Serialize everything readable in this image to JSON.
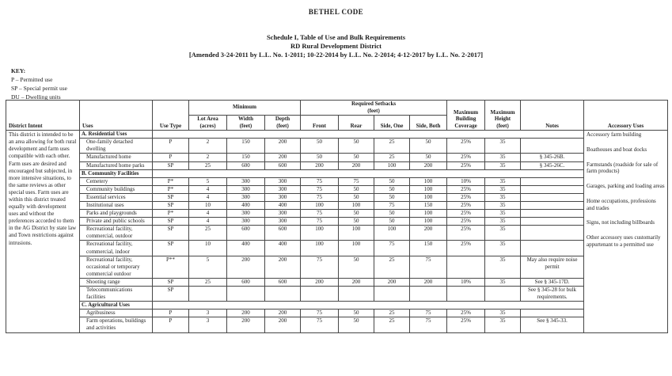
{
  "header": {
    "code_title": "BETHEL CODE",
    "schedule_title": "Schedule I, Table of Use and Bulk Requirements",
    "district_title": "RD Rural Development District",
    "amendments": "[Amended 3-24-2011 by L.L. No. 1-2011; 10-22-2014 by L.L. No. 2-2014; 4-12-2017 by L.L. No. 2-2017]"
  },
  "key": {
    "label": "KEY:",
    "items": [
      "P – Permitted use",
      "SP – Special permit use",
      "DU – Dwelling units"
    ]
  },
  "table": {
    "headers": {
      "district_intent": "District Intent",
      "uses": "Uses",
      "use_type": "Use Type",
      "minimum": "Minimum",
      "lot_area": "Lot Area\n(acres)",
      "width": "Width\n(feet)",
      "depth": "Depth\n(feet)",
      "required_setbacks": "Required Setbacks\n(feet)",
      "front": "Front",
      "rear": "Rear",
      "side_one": "Side, One",
      "side_both": "Side, Both",
      "max_building_coverage": "Maximum\nBuilding\nCoverage",
      "max_height": "Maximum\nHeight\n(feet)",
      "notes": "Notes",
      "accessory_uses": "Accessory Uses"
    },
    "district_intent": "This district is intended to be an area allowing for both rural development and farm uses compatible with each other. Farm uses are desired and encouraged but subjected, in more intensive situations, to the same reviews as other special uses. Farm uses are within this district treated equally with development uses and without the preferences accorded to them in the AG District by state law and Town restrictions against intrusions.",
    "accessory_uses": [
      "Accessory farm building",
      "Boathouses and boat docks",
      "Farmstands (roadside for sale of farm products)",
      "Garages, parking and loading areas",
      "Home occupations, professions and trades",
      "Signs, not including billboards",
      "Other accessory uses customarily appurtenant to a permitted use"
    ],
    "rows": [
      {
        "type": "section",
        "label": "A. Residential Uses"
      },
      {
        "type": "use",
        "use": "One-family detached dwelling",
        "use_type": "P",
        "lot_area": "2",
        "width": "150",
        "depth": "200",
        "front": "50",
        "rear": "50",
        "side_one": "25",
        "side_both": "50",
        "coverage": "25%",
        "height": "35",
        "notes": ""
      },
      {
        "type": "use",
        "use": "Manufactured home",
        "use_type": "P",
        "lot_area": "2",
        "width": "150",
        "depth": "200",
        "front": "50",
        "rear": "50",
        "side_one": "25",
        "side_both": "50",
        "coverage": "25%",
        "height": "35",
        "notes": "§ 345-26B."
      },
      {
        "type": "use",
        "use": "Manufactured home parks",
        "use_type": "SP",
        "lot_area": "25",
        "width": "600",
        "depth": "600",
        "front": "200",
        "rear": "200",
        "side_one": "100",
        "side_both": "200",
        "coverage": "25%",
        "height": "35",
        "notes": "§ 345-26C."
      },
      {
        "type": "section",
        "label": "B. Community Facilities"
      },
      {
        "type": "use",
        "use": "Cemetery",
        "use_type": "P*",
        "lot_area": "5",
        "width": "300",
        "depth": "300",
        "front": "75",
        "rear": "75",
        "side_one": "50",
        "side_both": "100",
        "coverage": "10%",
        "height": "35",
        "notes": ""
      },
      {
        "type": "use",
        "use": "Community buildings",
        "use_type": "P*",
        "lot_area": "4",
        "width": "300",
        "depth": "300",
        "front": "75",
        "rear": "50",
        "side_one": "50",
        "side_both": "100",
        "coverage": "25%",
        "height": "35",
        "notes": ""
      },
      {
        "type": "use",
        "use": "Essential services",
        "use_type": "SP",
        "lot_area": "4",
        "width": "300",
        "depth": "300",
        "front": "75",
        "rear": "50",
        "side_one": "50",
        "side_both": "100",
        "coverage": "25%",
        "height": "35",
        "notes": ""
      },
      {
        "type": "use",
        "use": "Institutional uses",
        "use_type": "SP",
        "lot_area": "10",
        "width": "400",
        "depth": "400",
        "front": "100",
        "rear": "100",
        "side_one": "75",
        "side_both": "150",
        "coverage": "25%",
        "height": "35",
        "notes": ""
      },
      {
        "type": "use",
        "use": "Parks and playgrounds",
        "use_type": "P*",
        "lot_area": "4",
        "width": "300",
        "depth": "300",
        "front": "75",
        "rear": "50",
        "side_one": "50",
        "side_both": "100",
        "coverage": "25%",
        "height": "35",
        "notes": ""
      },
      {
        "type": "use",
        "use": "Private and public schools",
        "use_type": "SP",
        "lot_area": "4",
        "width": "300",
        "depth": "300",
        "front": "75",
        "rear": "50",
        "side_one": "50",
        "side_both": "100",
        "coverage": "25%",
        "height": "35",
        "notes": ""
      },
      {
        "type": "use",
        "use": "Recreational facility, commercial, outdoor",
        "use_type": "SP",
        "lot_area": "25",
        "width": "600",
        "depth": "600",
        "front": "100",
        "rear": "100",
        "side_one": "100",
        "side_both": "200",
        "coverage": "25%",
        "height": "35",
        "notes": ""
      },
      {
        "type": "use",
        "use": "Recreational facility, commercial, indoor",
        "use_type": "SP",
        "lot_area": "10",
        "width": "400",
        "depth": "400",
        "front": "100",
        "rear": "100",
        "side_one": "75",
        "side_both": "150",
        "coverage": "25%",
        "height": "35",
        "notes": ""
      },
      {
        "type": "use",
        "use": "Recreational facility, occasional or temporary commercial outdoor",
        "use_type": "P**",
        "lot_area": "5",
        "width": "200",
        "depth": "200",
        "front": "75",
        "rear": "50",
        "side_one": "25",
        "side_both": "75",
        "coverage": "",
        "height": "35",
        "notes": "May also require noise permit"
      },
      {
        "type": "use",
        "use": "Shooting range",
        "use_type": "SP",
        "lot_area": "25",
        "width": "600",
        "depth": "600",
        "front": "200",
        "rear": "200",
        "side_one": "200",
        "side_both": "200",
        "coverage": "10%",
        "height": "35",
        "notes": "See § 345-17D."
      },
      {
        "type": "use",
        "use": "Telecommunications facilities",
        "use_type": "SP",
        "lot_area": "",
        "width": "",
        "depth": "",
        "front": "",
        "rear": "",
        "side_one": "",
        "side_both": "",
        "coverage": "",
        "height": "",
        "notes": "See § 345-28 for bulk requirements."
      },
      {
        "type": "section",
        "label": "C. Agricultural Uses"
      },
      {
        "type": "use",
        "use": "Agribusiness",
        "use_type": "P",
        "lot_area": "3",
        "width": "200",
        "depth": "200",
        "front": "75",
        "rear": "50",
        "side_one": "25",
        "side_both": "75",
        "coverage": "25%",
        "height": "35",
        "notes": ""
      },
      {
        "type": "use",
        "use": "Farm operations, buildings and activities",
        "use_type": "P",
        "lot_area": "3",
        "width": "200",
        "depth": "200",
        "front": "75",
        "rear": "50",
        "side_one": "25",
        "side_both": "75",
        "coverage": "25%",
        "height": "35",
        "notes": "See § 345-33."
      }
    ]
  }
}
